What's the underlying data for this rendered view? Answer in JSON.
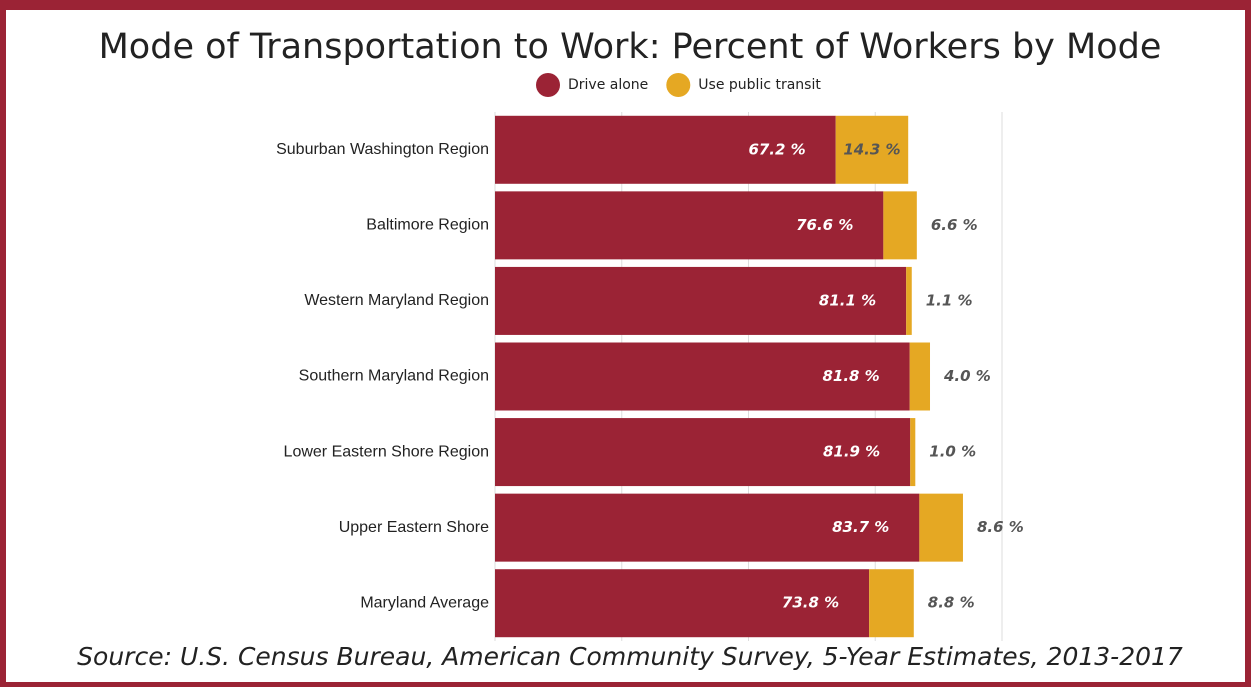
{
  "chart_data": {
    "type": "stacked-bar-horizontal",
    "title": "Mode of Transportation to Work: Percent of Workers by Mode",
    "source": "Source: U.S. Census Bureau, American Community Survey, 5-Year Estimates, 2013-2017",
    "categories": [
      "Suburban Washington Region",
      "Baltimore Region",
      "Western Maryland Region",
      "Southern Maryland Region",
      "Lower Eastern Shore Region",
      "Upper Eastern Shore",
      "Maryland Average"
    ],
    "series": [
      {
        "name": "Drive alone",
        "color": "#9b2335",
        "values": [
          67.2,
          76.6,
          81.1,
          81.8,
          81.9,
          83.7,
          73.8
        ],
        "value_labels": [
          "67.2 %",
          "76.6 %",
          "81.1 %",
          "81.8 %",
          "81.9 %",
          "83.7 %",
          "73.8 %"
        ]
      },
      {
        "name": "Use public transit",
        "color": "#e5a823",
        "values": [
          14.3,
          6.6,
          1.1,
          4.0,
          1.0,
          8.6,
          8.8
        ],
        "value_labels": [
          "14.3 %",
          "6.6 %",
          "1.1 %",
          "4.0 %",
          "1.0 %",
          "8.6 %",
          "8.8 %"
        ]
      }
    ],
    "xlim": [
      0,
      100
    ],
    "xticks": [
      0,
      25,
      50,
      75,
      100
    ],
    "grid": true,
    "legend": "top"
  }
}
